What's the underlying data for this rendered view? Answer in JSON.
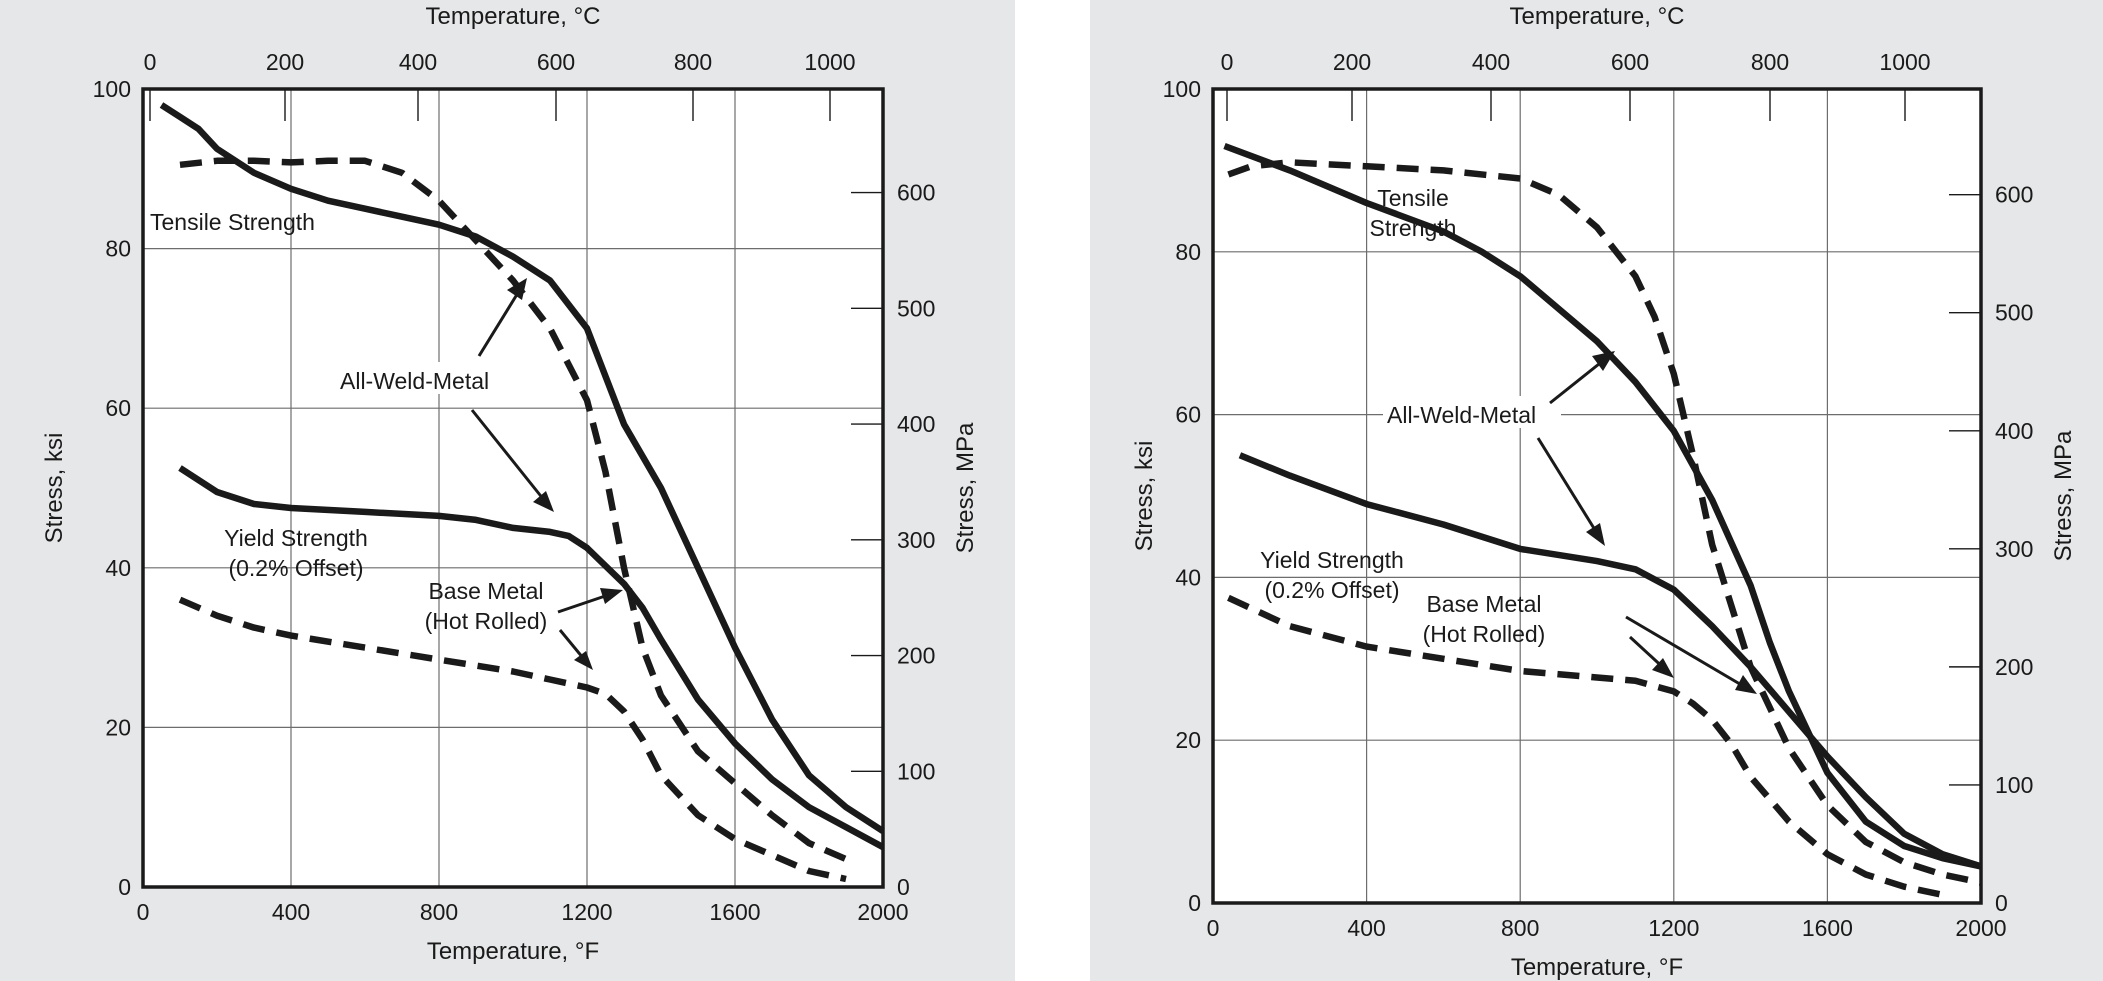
{
  "chart_data": [
    {
      "type": "line",
      "x_bottom": {
        "label": "Temperature, °F",
        "range": [
          0,
          2000
        ],
        "ticks": [
          0,
          400,
          800,
          1200,
          1600,
          2000
        ]
      },
      "x_top": {
        "label": "Temperature, °C",
        "ticks": [
          0,
          200,
          400,
          600,
          800,
          1000
        ]
      },
      "y_left": {
        "label": "Stress, ksi",
        "range": [
          0,
          100
        ],
        "ticks": [
          0,
          20,
          40,
          60,
          80,
          100
        ]
      },
      "y_right": {
        "label": "Stress, MPa",
        "ticks": [
          0,
          100,
          200,
          300,
          400,
          500,
          600
        ]
      },
      "grid": true,
      "series": [
        {
          "style": "solid",
          "x": [
            50,
            100,
            150,
            200,
            300,
            400,
            500,
            600,
            700,
            800,
            900,
            1000,
            1100,
            1200,
            1300,
            1400,
            1500,
            1600,
            1700,
            1800,
            1900,
            2000
          ],
          "y": [
            98,
            96.5,
            95,
            92.5,
            89.5,
            87.5,
            86,
            85,
            84,
            83,
            81.5,
            79,
            76,
            70,
            58,
            50,
            40,
            30,
            21,
            14,
            10,
            7
          ]
        },
        {
          "style": "dashed",
          "x": [
            100,
            200,
            300,
            400,
            500,
            600,
            700,
            800,
            900,
            1000,
            1100,
            1200,
            1250,
            1300,
            1350,
            1400,
            1500,
            1600,
            1700,
            1800,
            1900
          ],
          "y": [
            90.5,
            91,
            91,
            90.8,
            91,
            91,
            89.5,
            86,
            81,
            76,
            70,
            61,
            52,
            40,
            30,
            24,
            17,
            13,
            9,
            5.5,
            3.5
          ]
        },
        {
          "style": "solid",
          "x": [
            100,
            200,
            300,
            400,
            600,
            800,
            900,
            1000,
            1100,
            1150,
            1200,
            1300,
            1350,
            1400,
            1500,
            1600,
            1700,
            1800,
            1900,
            2000
          ],
          "y": [
            52.5,
            49.5,
            48,
            47.5,
            47,
            46.5,
            46,
            45,
            44.5,
            44,
            42.5,
            38,
            35,
            31,
            23.5,
            18,
            13.5,
            10,
            7.5,
            5
          ]
        },
        {
          "style": "dashed",
          "x": [
            100,
            200,
            300,
            400,
            600,
            800,
            1000,
            1100,
            1200,
            1250,
            1300,
            1350,
            1400,
            1500,
            1600,
            1700,
            1800,
            1900
          ],
          "y": [
            36,
            34,
            32.5,
            31.5,
            30,
            28.5,
            27,
            26,
            25,
            24.2,
            22,
            18.5,
            14,
            9,
            6,
            4,
            2,
            1
          ]
        }
      ],
      "annotations": {
        "tensile": "Tensile Strength",
        "weld": "All-Weld-Metal",
        "yield_1": "Yield Strength",
        "yield_2": "(0.2% Offset)",
        "base_1": "Base Metal",
        "base_2": "(Hot Rolled)"
      }
    },
    {
      "type": "line",
      "x_bottom": {
        "label": "Temperature, °F",
        "range": [
          0,
          2000
        ],
        "ticks": [
          0,
          400,
          800,
          1200,
          1600,
          2000
        ]
      },
      "x_top": {
        "label": "Temperature, °C",
        "ticks": [
          0,
          200,
          400,
          600,
          800,
          1000
        ]
      },
      "y_left": {
        "label": "Stress, ksi",
        "range": [
          0,
          100
        ],
        "ticks": [
          0,
          20,
          40,
          60,
          80,
          100
        ]
      },
      "y_right": {
        "label": "Stress, MPa",
        "ticks": [
          0,
          100,
          200,
          300,
          400,
          500,
          600
        ]
      },
      "grid": true,
      "series": [
        {
          "style": "solid",
          "x": [
            30,
            200,
            400,
            600,
            700,
            800,
            1000,
            1100,
            1200,
            1300,
            1400,
            1450,
            1500,
            1600,
            1700,
            1800,
            1900,
            2000
          ],
          "y": [
            93,
            90,
            86,
            82.5,
            80,
            77,
            69,
            64,
            58,
            49.5,
            39,
            32,
            26,
            16,
            10,
            7,
            5.5,
            4.5
          ]
        },
        {
          "style": "dashed",
          "x": [
            40,
            100,
            200,
            400,
            600,
            800,
            900,
            1000,
            1100,
            1150,
            1200,
            1250,
            1300,
            1400,
            1500,
            1600,
            1700,
            1800,
            1900,
            2000
          ],
          "y": [
            89.5,
            90.5,
            91,
            90.5,
            90,
            89,
            87,
            83,
            77,
            72,
            65,
            55,
            44,
            29,
            19,
            12,
            7.5,
            5,
            3.5,
            2.5
          ]
        },
        {
          "style": "solid",
          "x": [
            70,
            200,
            400,
            600,
            800,
            1000,
            1100,
            1200,
            1300,
            1400,
            1500,
            1600,
            1700,
            1800,
            1900,
            2000
          ],
          "y": [
            55,
            52.5,
            49,
            46.5,
            43.5,
            42,
            41,
            38.5,
            34,
            29,
            23.5,
            18,
            13,
            8.5,
            6,
            4.5
          ]
        },
        {
          "style": "dashed",
          "x": [
            40,
            200,
            400,
            600,
            800,
            1000,
            1100,
            1200,
            1250,
            1300,
            1350,
            1400,
            1500,
            1600,
            1700,
            1800,
            1900
          ],
          "y": [
            37.5,
            34,
            31.5,
            30,
            28.5,
            27.7,
            27.3,
            26,
            24.5,
            22.5,
            19.5,
            15.5,
            10,
            6,
            3.5,
            2,
            1
          ]
        }
      ],
      "annotations": {
        "tensile_1": "Tensile",
        "tensile_2": "Strength",
        "weld": "All-Weld-Metal",
        "yield_1": "Yield Strength",
        "yield_2": "(0.2% Offset)",
        "base_1": "Base Metal",
        "base_2": "(Hot Rolled)"
      }
    }
  ]
}
